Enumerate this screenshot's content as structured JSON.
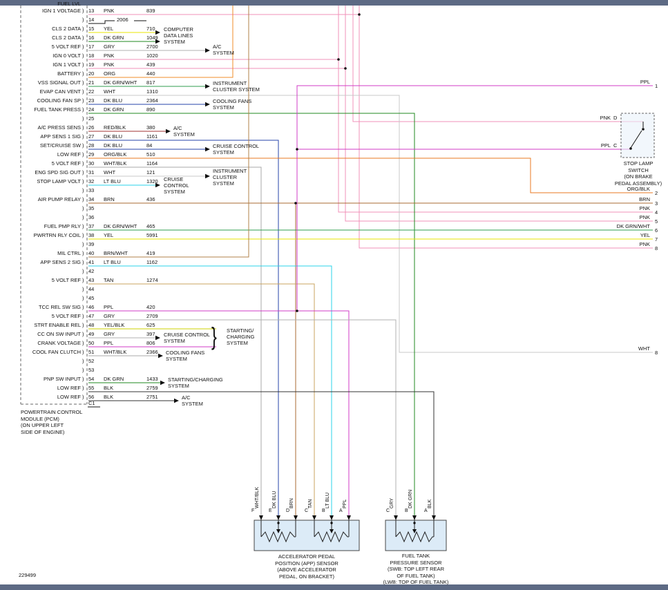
{
  "footer_id": "229499",
  "misc": {
    "brace": "}"
  },
  "pcm": {
    "partial_top_label": "FUEL LVL",
    "note": "2006",
    "connector_label": "C1",
    "caption": "POWERTRAIN CONTROL\nMODULE (PCM)\n(ON UPPER LEFT\nSIDE OF ENGINE)",
    "pins": [
      {
        "num": "13",
        "label": "IGN 1 VOLTAGE",
        "color": "PNK",
        "circuit": "839"
      },
      {
        "num": "14",
        "label": "",
        "color": "",
        "circuit": ""
      },
      {
        "num": "15",
        "label": "CLS 2 DATA",
        "color": "YEL",
        "circuit": "710"
      },
      {
        "num": "16",
        "label": "CLS 2 DATA",
        "color": "DK GRN",
        "circuit": "1049"
      },
      {
        "num": "17",
        "label": "5 VOLT REF",
        "color": "GRY",
        "circuit": "2700"
      },
      {
        "num": "18",
        "label": "IGN 0 VOLT",
        "color": "PNK",
        "circuit": "1020"
      },
      {
        "num": "19",
        "label": "IGN 1 VOLT",
        "color": "PNK",
        "circuit": "439"
      },
      {
        "num": "20",
        "label": "BATTERY",
        "color": "ORG",
        "circuit": "440"
      },
      {
        "num": "21",
        "label": "VSS SIGNAL OUT",
        "color": "DK GRN/WHT",
        "circuit": "817"
      },
      {
        "num": "22",
        "label": "EVAP CAN VENT",
        "color": "WHT",
        "circuit": "1310"
      },
      {
        "num": "23",
        "label": "COOLING FAN SP",
        "color": "DK BLU",
        "circuit": "2364"
      },
      {
        "num": "24",
        "label": "FUEL TANK PRESS",
        "color": "DK GRN",
        "circuit": "890"
      },
      {
        "num": "25",
        "label": "",
        "color": "",
        "circuit": ""
      },
      {
        "num": "26",
        "label": "A/C PRESS SENS",
        "color": "RED/BLK",
        "circuit": "380"
      },
      {
        "num": "27",
        "label": "APP SENS 1 SIG",
        "color": "DK BLU",
        "circuit": "1161"
      },
      {
        "num": "28",
        "label": "SET/CRUISE SW",
        "color": "DK BLU",
        "circuit": "84"
      },
      {
        "num": "29",
        "label": "LOW REF",
        "color": "ORG/BLK",
        "circuit": "510"
      },
      {
        "num": "30",
        "label": "5 VOLT REF",
        "color": "WHT/BLK",
        "circuit": "1164"
      },
      {
        "num": "31",
        "label": "ENG SPD SIG OUT",
        "color": "WHT",
        "circuit": "121"
      },
      {
        "num": "32",
        "label": "STOP LAMP VOLT",
        "color": "LT BLU",
        "circuit": "1320"
      },
      {
        "num": "33",
        "label": "",
        "color": "",
        "circuit": ""
      },
      {
        "num": "34",
        "label": "AIR PUMP RELAY",
        "color": "BRN",
        "circuit": "436"
      },
      {
        "num": "35",
        "label": "",
        "color": "",
        "circuit": ""
      },
      {
        "num": "36",
        "label": "",
        "color": "",
        "circuit": ""
      },
      {
        "num": "37",
        "label": "FUEL PMP RLY",
        "color": "DK GRN/WHT",
        "circuit": "465"
      },
      {
        "num": "38",
        "label": "PWRTRN RLY COIL",
        "color": "YEL",
        "circuit": "5991"
      },
      {
        "num": "39",
        "label": "",
        "color": "",
        "circuit": ""
      },
      {
        "num": "40",
        "label": "MIL CTRL",
        "color": "BRN/WHT",
        "circuit": "419"
      },
      {
        "num": "41",
        "label": "APP SENS 2 SIG",
        "color": "LT BLU",
        "circuit": "1162"
      },
      {
        "num": "42",
        "label": "",
        "color": "",
        "circuit": ""
      },
      {
        "num": "43",
        "label": "5 VOLT REF",
        "color": "TAN",
        "circuit": "1274"
      },
      {
        "num": "44",
        "label": "",
        "color": "",
        "circuit": ""
      },
      {
        "num": "45",
        "label": "",
        "color": "",
        "circuit": ""
      },
      {
        "num": "46",
        "label": "TCC REL SW SIG",
        "color": "PPL",
        "circuit": "420"
      },
      {
        "num": "47",
        "label": "5 VOLT REF",
        "color": "GRY",
        "circuit": "2709"
      },
      {
        "num": "48",
        "label": "STRT ENABLE REL",
        "color": "YEL/BLK",
        "circuit": "625"
      },
      {
        "num": "49",
        "label": "CC ON SW INPUT",
        "color": "GRY",
        "circuit": "397"
      },
      {
        "num": "50",
        "label": "CRANK VOLTAGE",
        "color": "PPL",
        "circuit": "806"
      },
      {
        "num": "51",
        "label": "COOL FAN CLUTCH",
        "color": "WHT/BLK",
        "circuit": "2366"
      },
      {
        "num": "52",
        "label": "",
        "color": "",
        "circuit": ""
      },
      {
        "num": "53",
        "label": "",
        "color": "",
        "circuit": ""
      },
      {
        "num": "54",
        "label": "PNP SW INPUT",
        "color": "DK GRN",
        "circuit": "1433"
      },
      {
        "num": "55",
        "label": "LOW REF",
        "color": "BLK",
        "circuit": "2759"
      },
      {
        "num": "56",
        "label": "LOW REF",
        "color": "BLK",
        "circuit": "2751"
      }
    ]
  },
  "systems": {
    "computer_data": "COMPUTER\nDATA LINES\nSYSTEM",
    "ac_1": "A/C\nSYSTEM",
    "instrument_1": "INSTRUMENT\nCLUSTER SYSTEM",
    "cooling_1": "COOLING FANS\nSYSTEM",
    "ac_2": "A/C\nSYSTEM",
    "cruise_1": "CRUISE CONTROL\nSYSTEM",
    "instrument_2": "INSTRUMENT\nCLUSTER\nSYSTEM",
    "cruise_2": "CRUISE\nCONTROL\nSYSTEM",
    "cruise_3": "CRUISE CONTROL\nSYSTEM",
    "starting_1": "STARTING/\nCHARGING\nSYSTEM",
    "cooling_2": "COOLING FANS\nSYSTEM",
    "starting_2": "STARTING/CHARGING\nSYSTEM",
    "ac_3": "A/C\nSYSTEM"
  },
  "edge_labels": [
    {
      "color": "PPL",
      "num": "1"
    },
    {
      "color": "ORG/BLK",
      "num": "2"
    },
    {
      "color": "BRN",
      "num": "3"
    },
    {
      "color": "PNK",
      "num": "4"
    },
    {
      "color": "PNK",
      "num": "5"
    },
    {
      "color": "DK GRN/WHT",
      "num": "6"
    },
    {
      "color": "YEL",
      "num": "7"
    },
    {
      "color": "PNK",
      "num": "8"
    },
    {
      "color": "WHT",
      "num": "8"
    }
  ],
  "stop_lamp": {
    "caption": "STOP LAMP\nSWITCH\n(ON BRAKE\nPEDAL ASSEMBLY)",
    "pin_d_letter": "D",
    "pin_d_color": "PNK",
    "pin_c_letter": "C",
    "pin_c_color": "PPL"
  },
  "app_sensor": {
    "caption": "ACCELERATOR PEDAL\nPOSITION (APP) SENSOR\n(ABOVE ACCELERATOR\nPEDAL, ON BRACKET)",
    "pins": [
      {
        "letter": "F",
        "color": "WHT/BLK"
      },
      {
        "letter": "E",
        "color": "DK BLU"
      },
      {
        "letter": "D",
        "color": "BRN"
      },
      {
        "letter": "C",
        "color": "TAN"
      },
      {
        "letter": "B",
        "color": "LT BLU"
      },
      {
        "letter": "A",
        "color": "PPL"
      }
    ]
  },
  "fuel_sensor": {
    "caption": "FUEL TANK\nPRESSURE SENSOR\n(SWB: TOP LEFT REAR\nOF FUEL TANK)\n(LWB: TOP OF FUEL TANK)",
    "pins": [
      {
        "letter": "C",
        "color": "GRY"
      },
      {
        "letter": "B",
        "color": "DK GRN"
      },
      {
        "letter": "A",
        "color": "BLK"
      }
    ]
  },
  "wire_colors": {
    "PNK": "#f290b8",
    "PPL": "#d23bc7",
    "YEL": "#e8e400",
    "YEL/BLK": "#ccd000",
    "DK GRN": "#1f8a1f",
    "DK GRN/WHT": "#2f9e4f",
    "GRY": "#b0b0b0",
    "ORG": "#f08c28",
    "ORG/BLK": "#e87820",
    "DK BLU": "#2543a8",
    "LT BLU": "#29d3e8",
    "WHT": "#c8c8c8",
    "WHT/BLK": "#a8a8a8",
    "RED/BLK": "#a03232",
    "BRN": "#a86a32",
    "BRN/WHT": "#b08048",
    "BLK": "#333333",
    "TAN": "#c9a35f"
  },
  "bar_color": "#5d6a84"
}
